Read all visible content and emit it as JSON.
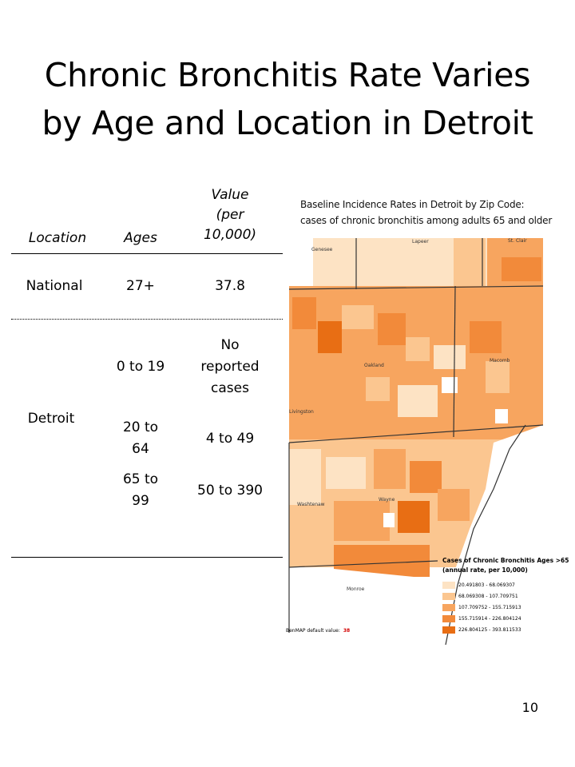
{
  "slide": {
    "title_line1": "Chronic Bronchitis Rate Varies",
    "title_line2": "by Age and Location in Detroit",
    "page_number": "10"
  },
  "table": {
    "headers": {
      "location": "Location",
      "ages": "Ages",
      "value": [
        "Value",
        "(per",
        "10,000)"
      ]
    },
    "national": {
      "location": "National",
      "ages": "27+",
      "value": "37.8"
    },
    "detroit": {
      "location": "Detroit",
      "rows": [
        {
          "ages": [
            "0 to 19"
          ],
          "value": [
            "No",
            "reported",
            "cases"
          ]
        },
        {
          "ages": [
            "20 to",
            "64"
          ],
          "value": [
            "4 to 49"
          ]
        },
        {
          "ages": [
            "65 to",
            "99"
          ],
          "value": [
            "50 to 390"
          ]
        }
      ]
    }
  },
  "map": {
    "title_line1": "Baseline Incidence Rates in Detroit by Zip Code:",
    "title_line2": "cases of chronic bronchitis among adults 65 and older",
    "counties": [
      "Genesee",
      "Lapeer",
      "St. Clair",
      "Oakland",
      "Macomb",
      "Livingston",
      "Washtenaw",
      "Wayne",
      "Monroe"
    ],
    "legend_title1": "Cases of Chronic Bronchitis Ages >65",
    "legend_title2": "(annual rate, per 10,000)",
    "legend": [
      {
        "label": "20.491803 - 68.069307",
        "color": "#fde3c4"
      },
      {
        "label": "68.069308 - 107.709751",
        "color": "#fbc690"
      },
      {
        "label": "107.709752 - 155.715913",
        "color": "#f7a55f"
      },
      {
        "label": "155.715914 - 226.804124",
        "color": "#f28a3a"
      },
      {
        "label": "226.804125 - 393.811533",
        "color": "#e86e14"
      }
    ],
    "benmap_label": "BenMAP default value:",
    "benmap_value": "38"
  }
}
